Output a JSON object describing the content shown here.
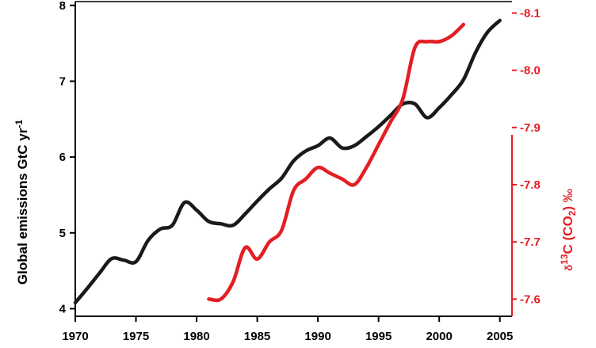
{
  "chart_data": {
    "type": "line",
    "colors": {
      "emissions": "#1a1a1a",
      "delta13c": "#e31e24",
      "axis": "#000000"
    },
    "x_axis": {
      "range": [
        1970,
        2006
      ],
      "ticks": [
        1970,
        1975,
        1980,
        1985,
        1990,
        1995,
        2000,
        2005
      ],
      "tick_labels": [
        "1970",
        "1975",
        "1980",
        "1985",
        "1990",
        "1995",
        "2000",
        "2005"
      ]
    },
    "y_left": {
      "label_main": "Global emissions GtC yr",
      "label_sup": "-1",
      "range": [
        3.9,
        8.05
      ],
      "ticks": [
        4,
        5,
        6,
        7,
        8
      ],
      "tick_labels": [
        "4",
        "5",
        "6",
        "7",
        "8"
      ]
    },
    "y_right": {
      "label_delta": "δ",
      "label_13": "13",
      "label_c_co": "C (CO",
      "label_2": "2",
      "label_permil": ") ‰",
      "range": [
        -7.57,
        -8.12
      ],
      "ticks": [
        -7.6,
        -7.7,
        -7.8,
        -7.9,
        -8.0,
        -8.1
      ],
      "tick_labels": [
        "-7.6",
        "-7.7",
        "-7.8",
        "-7.9",
        "-8.0",
        "-8.1"
      ]
    },
    "series": [
      {
        "axis": "left",
        "x": [
          1970,
          1971,
          1972,
          1973,
          1974,
          1975,
          1976,
          1977,
          1978,
          1979,
          1980,
          1981,
          1982,
          1983,
          1984,
          1985,
          1986,
          1987,
          1988,
          1989,
          1990,
          1991,
          1992,
          1993,
          1994,
          1995,
          1996,
          1997,
          1998,
          1999,
          2000,
          2001,
          2002,
          2003,
          2004,
          2005
        ],
        "y": [
          4.08,
          4.27,
          4.47,
          4.66,
          4.64,
          4.62,
          4.9,
          5.05,
          5.1,
          5.4,
          5.3,
          5.15,
          5.12,
          5.1,
          5.25,
          5.42,
          5.58,
          5.72,
          5.95,
          6.08,
          6.15,
          6.25,
          6.12,
          6.15,
          6.27,
          6.4,
          6.55,
          6.7,
          6.7,
          6.52,
          6.65,
          6.82,
          7.02,
          7.38,
          7.65,
          7.8
        ]
      },
      {
        "axis": "right",
        "x": [
          1981,
          1982,
          1983,
          1984,
          1985,
          1986,
          1987,
          1988,
          1989,
          1990,
          1991,
          1992,
          1993,
          1994,
          1995,
          1996,
          1997,
          1998,
          1999,
          2000,
          2001,
          2002
        ],
        "y": [
          -7.6,
          -7.6,
          -7.63,
          -7.69,
          -7.67,
          -7.7,
          -7.72,
          -7.79,
          -7.81,
          -7.83,
          -7.82,
          -7.81,
          -7.8,
          -7.83,
          -7.87,
          -7.91,
          -7.95,
          -8.04,
          -8.05,
          -8.05,
          -8.06,
          -8.08
        ]
      }
    ]
  }
}
